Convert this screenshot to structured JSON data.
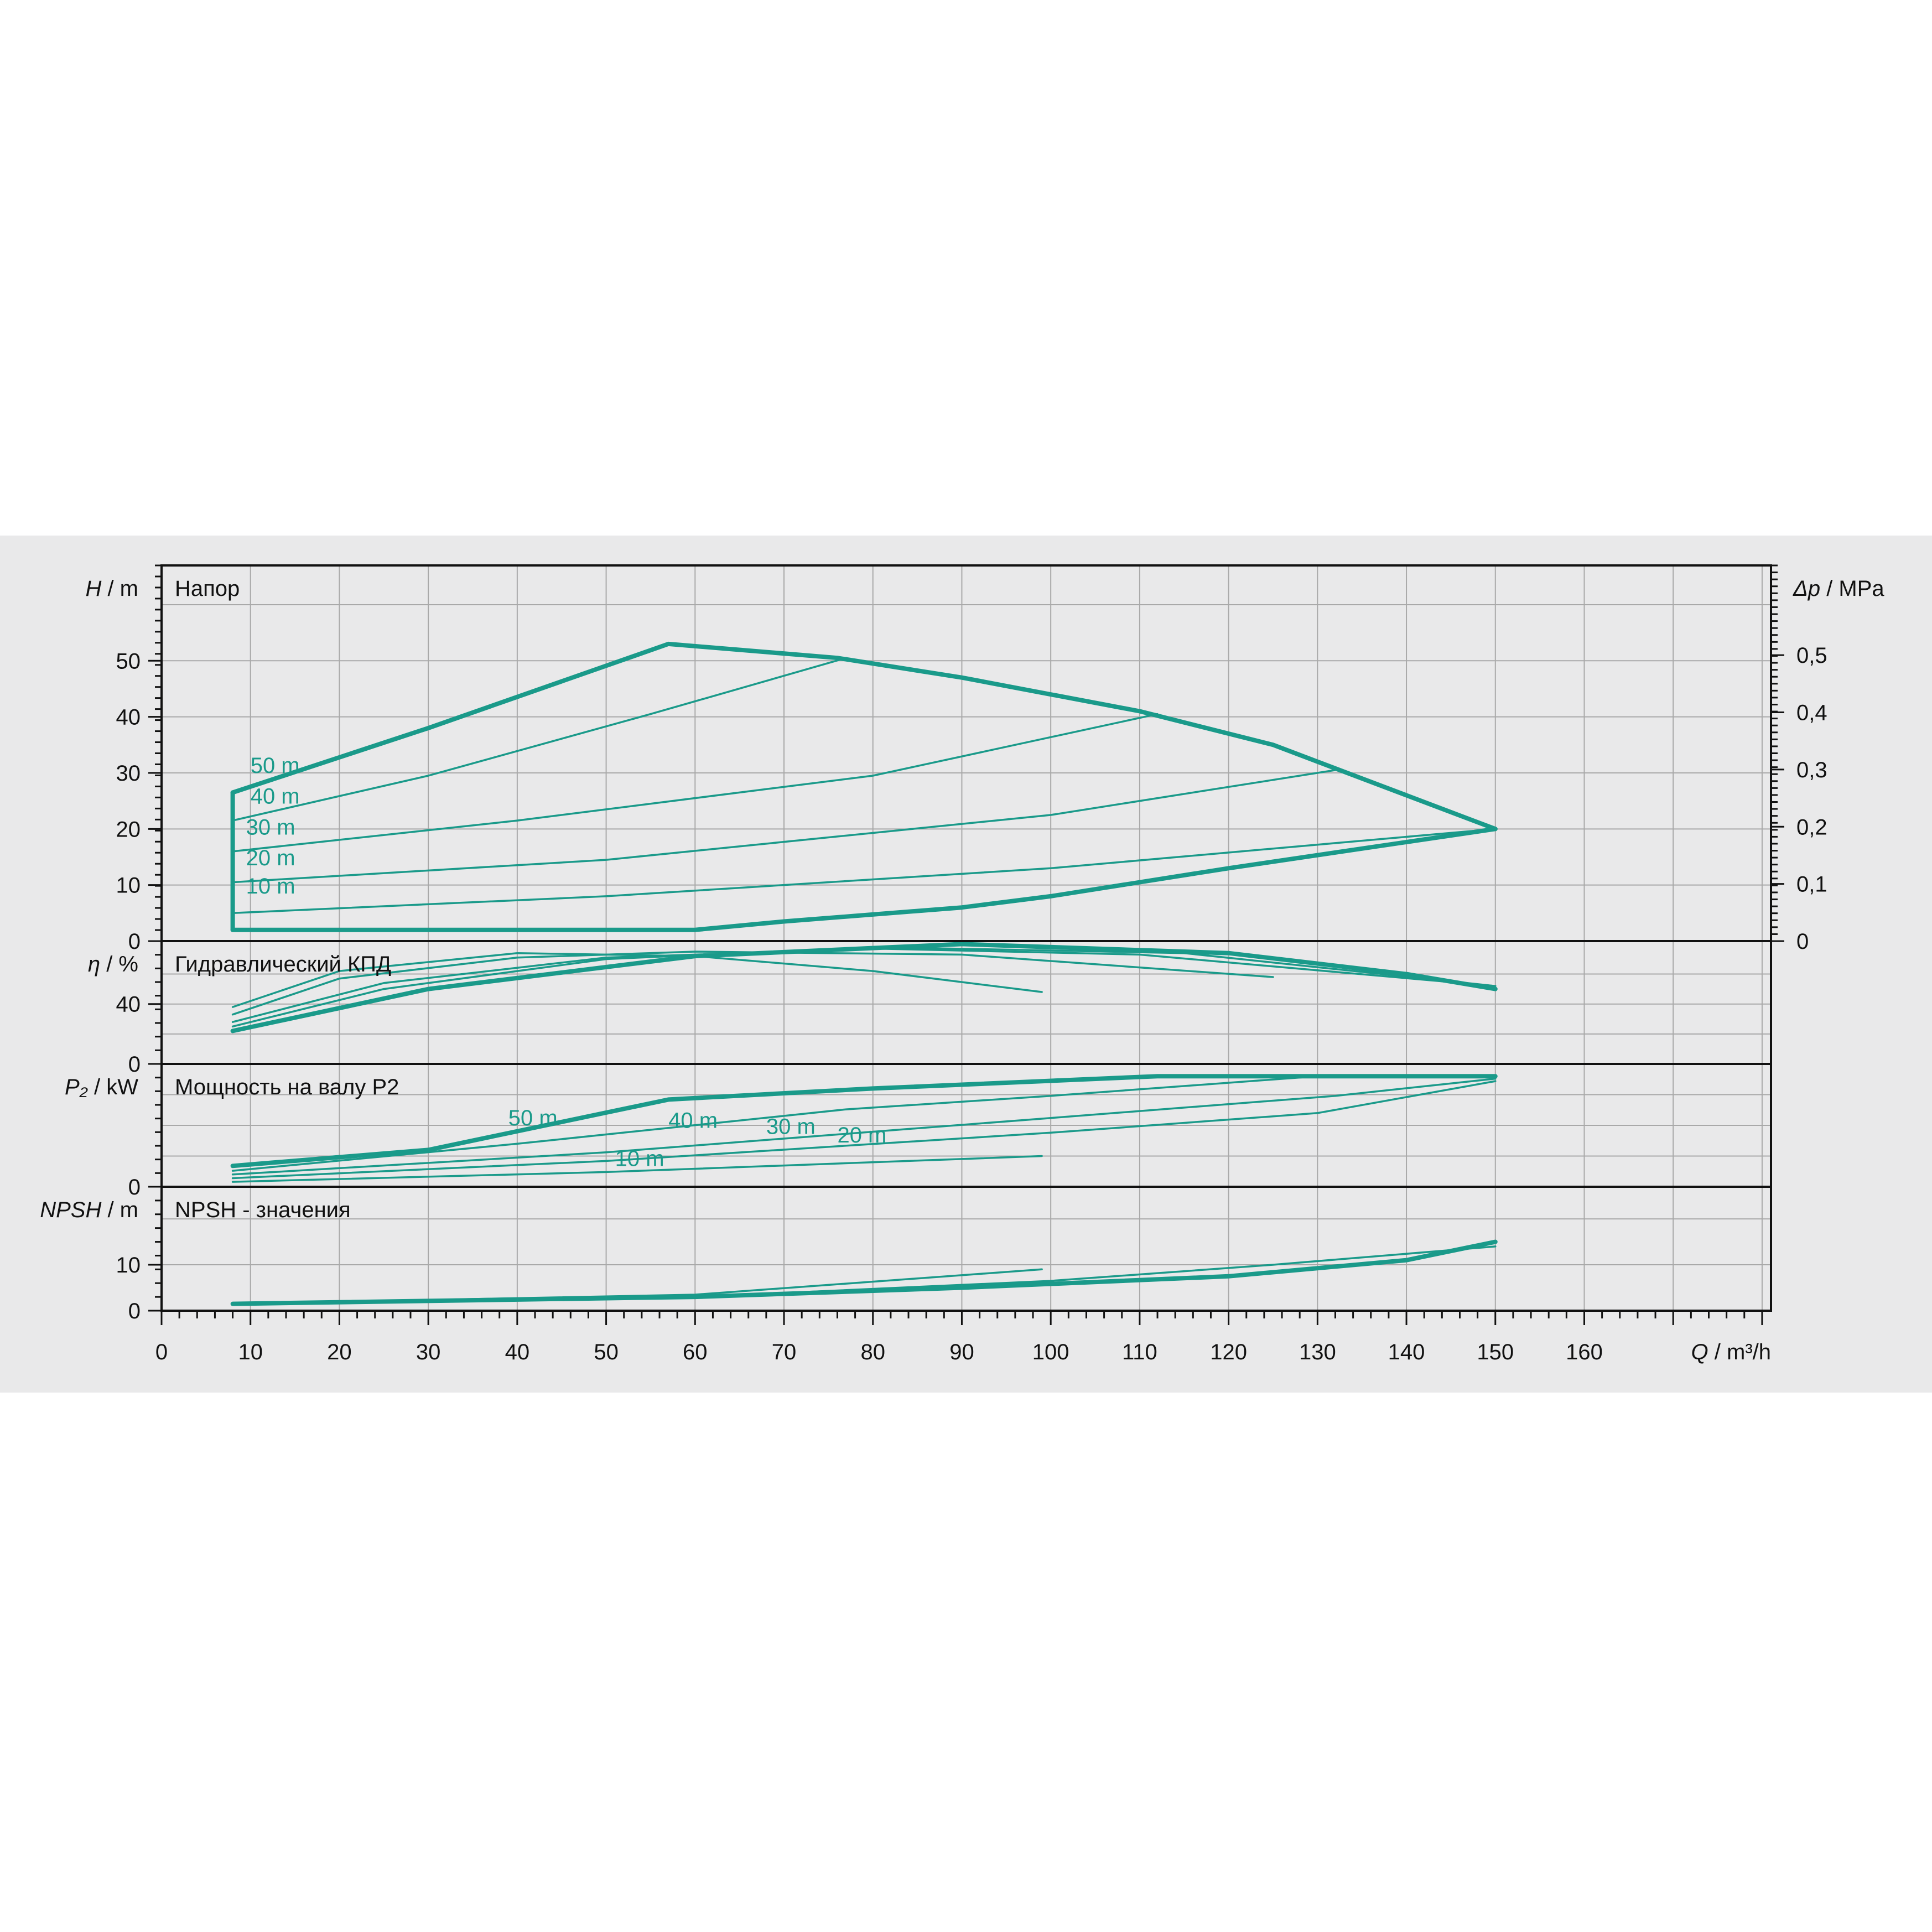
{
  "chart_data": {
    "type": "line",
    "colors": {
      "curve": "#1a9a8a",
      "grid": "#a9a9a9",
      "frame": "#111111",
      "background": "#e9e9ea"
    },
    "x_axis": {
      "label_symbol": "Q",
      "label_unit": "/ m³/h",
      "range": [
        0,
        181
      ],
      "ticks": [
        0,
        10,
        20,
        30,
        40,
        50,
        60,
        70,
        80,
        90,
        100,
        110,
        120,
        130,
        140,
        150,
        160
      ]
    },
    "panels": [
      {
        "id": "head",
        "title": "Напор",
        "ylabel_symbol": "H",
        "ylabel_unit": "/ m",
        "ylim": [
          0,
          67
        ],
        "yticks": [
          0,
          10,
          20,
          30,
          40,
          50
        ],
        "right_axis": {
          "label_symbol": "Δp",
          "label_unit": "/ MPa",
          "ticks": [
            "0",
            "0,1",
            "0,2",
            "0,3",
            "0,4",
            "0,5"
          ],
          "values": [
            0,
            10.2,
            20.4,
            30.6,
            40.8,
            51
          ]
        },
        "series": [
          {
            "thick": true,
            "x": [
              8,
              8
            ],
            "y": [
              2,
              26.5
            ]
          },
          {
            "thick": true,
            "x": [
              8,
              30,
              57,
              76,
              90,
              110,
              125,
              140,
              150
            ],
            "y": [
              26.5,
              38,
              53,
              50.5,
              47,
              41,
              35,
              26,
              20
            ]
          },
          {
            "thick": true,
            "x": [
              8,
              60,
              70,
              90,
              100,
              120,
              150
            ],
            "y": [
              2,
              2,
              3.5,
              6,
              8,
              13,
              20
            ]
          },
          {
            "thick": false,
            "x": [
              8,
              30,
              55,
              77
            ],
            "y": [
              21.5,
              29.5,
              40.5,
              50.5
            ]
          },
          {
            "thick": false,
            "x": [
              8,
              40,
              80,
              112
            ],
            "y": [
              16,
              21.5,
              29.5,
              40.5
            ]
          },
          {
            "thick": false,
            "x": [
              8,
              50,
              100,
              132
            ],
            "y": [
              10.5,
              14.5,
              22.5,
              30.5
            ]
          },
          {
            "thick": false,
            "x": [
              8,
              50,
              100,
              150
            ],
            "y": [
              5,
              8,
              13,
              20
            ]
          }
        ],
        "curve_labels": [
          {
            "text": "50 m",
            "x": 10,
            "y": 30
          },
          {
            "text": "40 m",
            "x": 10,
            "y": 24.5
          },
          {
            "text": "30 m",
            "x": 9.5,
            "y": 19
          },
          {
            "text": "20 m",
            "x": 9.5,
            "y": 13.5
          },
          {
            "text": "10 m",
            "x": 9.5,
            "y": 8.5
          }
        ]
      },
      {
        "id": "efficiency",
        "title": "Гидравлический КПД",
        "ylabel_symbol": "η",
        "ylabel_unit": "/ %",
        "ylim": [
          0,
          82
        ],
        "yticks": [
          0,
          40
        ],
        "series": [
          {
            "thick": false,
            "x": [
              8,
              20,
              40,
              60,
              80,
              99
            ],
            "y": [
              38,
              62,
              74,
              72,
              62,
              48
            ]
          },
          {
            "thick": false,
            "x": [
              8,
              20,
              40,
              60,
              90,
              125
            ],
            "y": [
              33,
              57,
              71,
              75,
              73,
              58
            ]
          },
          {
            "thick": false,
            "x": [
              8,
              25,
              50,
              80,
              110,
              150
            ],
            "y": [
              28,
              54,
              71,
              77,
              73,
              52
            ]
          },
          {
            "thick": false,
            "x": [
              8,
              25,
              50,
              80,
              115,
              150
            ],
            "y": [
              25,
              50,
              70,
              78,
              74,
              52
            ]
          },
          {
            "thick": true,
            "x": [
              8,
              30,
              60,
              90,
              120,
              140,
              150
            ],
            "y": [
              22,
              50,
              72,
              80,
              74,
              60,
              50
            ]
          }
        ]
      },
      {
        "id": "power",
        "title": "Мощность на валу P2",
        "ylabel_symbol": "P₂",
        "ylabel_unit": "/ kW",
        "ylim": [
          0,
          100
        ],
        "yticks": [
          0
        ],
        "series": [
          {
            "thick": true,
            "x": [
              8,
              30,
              57,
              80,
              112,
              140,
              150
            ],
            "y": [
              17,
              30,
              71,
              80,
              90,
              90,
              90
            ]
          },
          {
            "thick": false,
            "x": [
              8,
              40,
              77,
              100,
              130,
              150
            ],
            "y": [
              13,
              35,
              63,
              74,
              90,
              90
            ]
          },
          {
            "thick": false,
            "x": [
              8,
              50,
              100,
              132,
              150
            ],
            "y": [
              10,
              28,
              56,
              74,
              88
            ]
          },
          {
            "thick": false,
            "x": [
              8,
              50,
              100,
              130,
              150
            ],
            "y": [
              7,
              21,
              44,
              60,
              86
            ]
          },
          {
            "thick": false,
            "x": [
              8,
              50,
              99
            ],
            "y": [
              4,
              12,
              25
            ]
          }
        ],
        "curve_labels": [
          {
            "text": "50 m",
            "x": 39,
            "y": 50
          },
          {
            "text": "40 m",
            "x": 57,
            "y": 48
          },
          {
            "text": "30 m",
            "x": 68,
            "y": 43
          },
          {
            "text": "20 m",
            "x": 76,
            "y": 36
          },
          {
            "text": "10 m",
            "x": 51,
            "y": 17
          }
        ]
      },
      {
        "id": "npsh",
        "title": "NPSH - значения",
        "ylabel_symbol": "NPSH",
        "ylabel_unit": "/ m",
        "ylim": [
          0,
          27
        ],
        "yticks": [
          0,
          10
        ],
        "series": [
          {
            "thick": true,
            "x": [
              8,
              60,
              90,
              120,
              140,
              150
            ],
            "y": [
              1.5,
              3,
              5,
              7.5,
              11,
              15
            ]
          },
          {
            "thick": false,
            "x": [
              8,
              60,
              99
            ],
            "y": [
              1.5,
              3.5,
              9
            ]
          },
          {
            "thick": false,
            "x": [
              8,
              60,
              100,
              125,
              150
            ],
            "y": [
              1.5,
              3,
              6.5,
              10,
              14
            ]
          }
        ]
      }
    ]
  }
}
